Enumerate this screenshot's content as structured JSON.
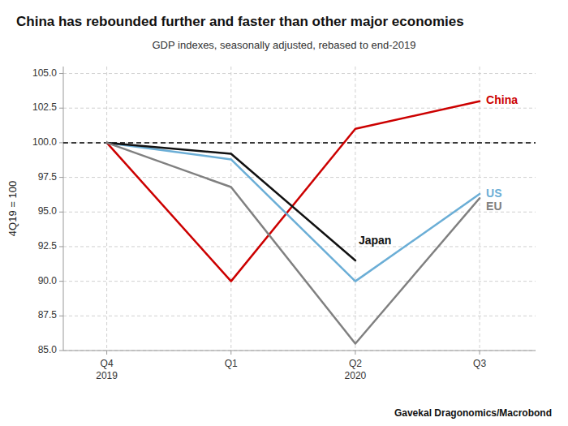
{
  "chart_data": {
    "type": "line",
    "title": "China has rebounded further and faster than other major economies",
    "subtitle": "GDP indexes, seasonally adjusted, rebased to end-2019",
    "y_label": "4Q19 = 100",
    "source": "Gavekal Dragonomics/Macrobond",
    "categories": [
      "Q4\n2019",
      "Q1",
      "Q2\n2020",
      "Q3"
    ],
    "series": [
      {
        "name": "China",
        "color": "#cc0000",
        "values": [
          100,
          90.0,
          101.0,
          103.0
        ]
      },
      {
        "name": "US",
        "color": "#6baed6",
        "values": [
          100,
          98.8,
          90.0,
          96.3
        ]
      },
      {
        "name": "Japan",
        "color": "#111111",
        "values": [
          100,
          99.2,
          91.5,
          null
        ]
      },
      {
        "name": "EU",
        "color": "#808080",
        "values": [
          100,
          96.8,
          85.5,
          96.0
        ]
      }
    ],
    "reference_line": 100.0,
    "ylim": [
      85.0,
      105.5
    ],
    "yticks": [
      {
        "value": 85.0,
        "label": "85.0"
      },
      87.5,
      {
        "value": 90.0,
        "label": "90.0"
      },
      92.5,
      {
        "value": 95.0,
        "label": "95.0"
      },
      97.5,
      {
        "value": 100.0,
        "label": "100.0"
      },
      102.5,
      {
        "value": 105.0,
        "label": "105.0"
      }
    ],
    "grid": true
  }
}
